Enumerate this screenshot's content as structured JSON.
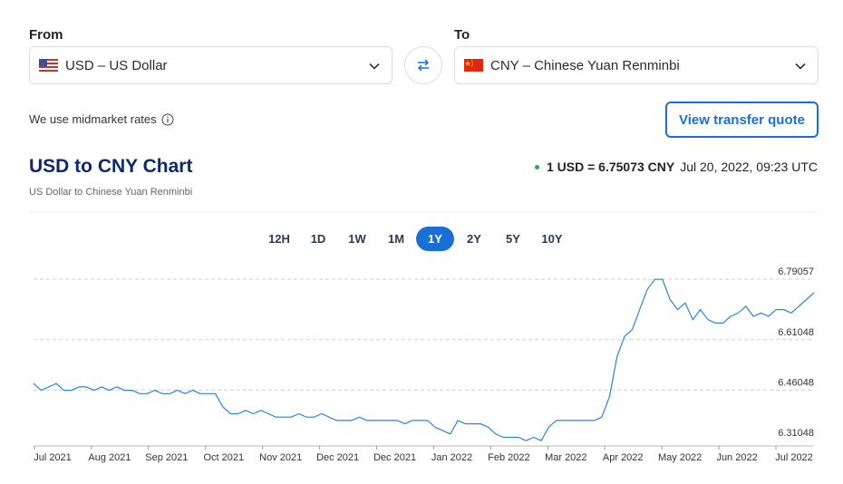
{
  "from": {
    "label": "From",
    "currency": "USD – US Dollar",
    "flag_icon": "us-flag-icon"
  },
  "to": {
    "label": "To",
    "currency": "CNY – Chinese Yuan Renminbi",
    "flag_icon": "china-flag-icon"
  },
  "swap_icon": "swap-arrows-icon",
  "midmarket_text": "We use midmarket rates",
  "quote_button": "View transfer quote",
  "chart_header": {
    "title": "USD to CNY Chart",
    "subtitle": "US Dollar to Chinese Yuan Renminbi",
    "rate": "1 USD = 6.75073 CNY",
    "timestamp": "Jul 20, 2022, 09:23 UTC"
  },
  "range_tabs": [
    "12H",
    "1D",
    "1W",
    "1M",
    "1Y",
    "2Y",
    "5Y",
    "10Y"
  ],
  "active_range": "1Y",
  "colors": {
    "accent": "#1a6fd6",
    "title": "#0c2a6a",
    "line": "#2a85e0",
    "live_dot": "#2aa84a"
  },
  "chart_data": {
    "type": "line",
    "ylim": [
      6.31048,
      6.79057
    ],
    "y_ticks": [
      "6.79057",
      "6.61048",
      "6.46048",
      "6.31048"
    ],
    "x_tick_labels": [
      "Jul 2021",
      "Aug 2021",
      "Sep 2021",
      "Oct 2021",
      "Nov 2021",
      "Dec 2021",
      "Dec 2021",
      "Jan 2022",
      "Feb 2022",
      "Mar 2022",
      "Apr 2022",
      "May 2022",
      "Jun 2022",
      "Jul 2022"
    ],
    "series": [
      {
        "values": [
          6.48,
          6.46,
          6.47,
          6.48,
          6.46,
          6.46,
          6.47,
          6.47,
          6.46,
          6.47,
          6.46,
          6.47,
          6.46,
          6.46,
          6.45,
          6.45,
          6.46,
          6.45,
          6.45,
          6.46,
          6.45,
          6.46,
          6.45,
          6.45,
          6.45,
          6.41,
          6.39,
          6.39,
          6.4,
          6.39,
          6.4,
          6.39,
          6.38,
          6.38,
          6.38,
          6.39,
          6.38,
          6.38,
          6.39,
          6.38,
          6.37,
          6.37,
          6.37,
          6.38,
          6.37,
          6.37,
          6.37,
          6.37,
          6.37,
          6.36,
          6.37,
          6.37,
          6.37,
          6.35,
          6.34,
          6.33,
          6.37,
          6.36,
          6.36,
          6.36,
          6.35,
          6.33,
          6.32,
          6.32,
          6.32,
          6.31,
          6.32,
          6.31,
          6.35,
          6.37,
          6.37,
          6.37,
          6.37,
          6.37,
          6.37,
          6.38,
          6.44,
          6.56,
          6.62,
          6.64,
          6.7,
          6.76,
          6.79,
          6.79,
          6.73,
          6.7,
          6.72,
          6.67,
          6.7,
          6.67,
          6.66,
          6.66,
          6.68,
          6.69,
          6.71,
          6.68,
          6.69,
          6.68,
          6.7,
          6.7,
          6.69,
          6.71,
          6.73,
          6.75
        ]
      }
    ]
  }
}
